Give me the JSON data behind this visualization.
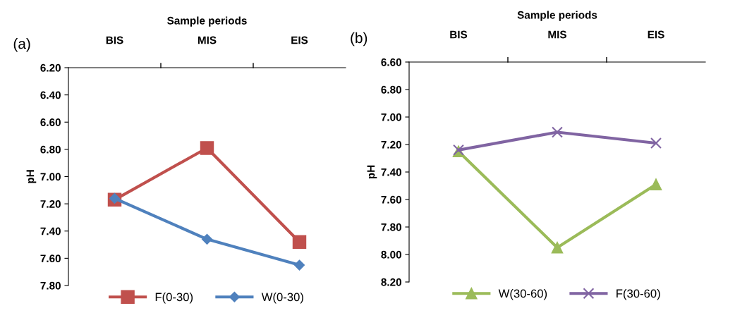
{
  "chart_data": [
    {
      "type": "line",
      "title": "(a)",
      "xlabel": "Sample periods",
      "ylabel": "pH",
      "categories": [
        "BIS",
        "MIS",
        "EIS"
      ],
      "ylim": [
        7.8,
        6.2
      ],
      "yticks": [
        {
          "value": 6.2,
          "label": "6.20"
        },
        {
          "value": 6.4,
          "label": "6.40"
        },
        {
          "value": 6.6,
          "label": "6.60"
        },
        {
          "value": 6.8,
          "label": "6.80"
        },
        {
          "value": 7.0,
          "label": "7.00"
        },
        {
          "value": 7.2,
          "label": "7.20"
        },
        {
          "value": 7.4,
          "label": "7.40"
        },
        {
          "value": 7.6,
          "label": "7.60"
        },
        {
          "value": 7.8,
          "label": "7.80"
        }
      ],
      "legend": "bottom",
      "grid": false,
      "series": [
        {
          "name": "F(0-30)",
          "color": "#c0504d",
          "marker": "square",
          "values": [
            7.17,
            6.79,
            7.48
          ]
        },
        {
          "name": "W(0-30)",
          "color": "#4f81bd",
          "marker": "diamond",
          "values": [
            7.16,
            7.46,
            7.65
          ]
        }
      ]
    },
    {
      "type": "line",
      "title": "(b)",
      "xlabel": "Sample periods",
      "ylabel": "pH",
      "categories": [
        "BIS",
        "MIS",
        "EIS"
      ],
      "ylim": [
        8.2,
        6.6
      ],
      "yticks": [
        {
          "value": 6.6,
          "label": "6.60"
        },
        {
          "value": 6.8,
          "label": "6.80"
        },
        {
          "value": 7.0,
          "label": "7.00"
        },
        {
          "value": 7.2,
          "label": "7.20"
        },
        {
          "value": 7.4,
          "label": "7.40"
        },
        {
          "value": 7.6,
          "label": "7.60"
        },
        {
          "value": 7.8,
          "label": "7.80"
        },
        {
          "value": 8.0,
          "label": "8.00"
        },
        {
          "value": 8.2,
          "label": "8.20"
        }
      ],
      "legend": "bottom",
      "grid": false,
      "series": [
        {
          "name": "W(30-60)",
          "color": "#9bbb59",
          "marker": "triangle",
          "values": [
            7.25,
            7.95,
            7.49
          ]
        },
        {
          "name": "F(30-60)",
          "color": "#8064a2",
          "marker": "cross",
          "values": [
            7.24,
            7.11,
            7.19
          ]
        }
      ]
    }
  ]
}
